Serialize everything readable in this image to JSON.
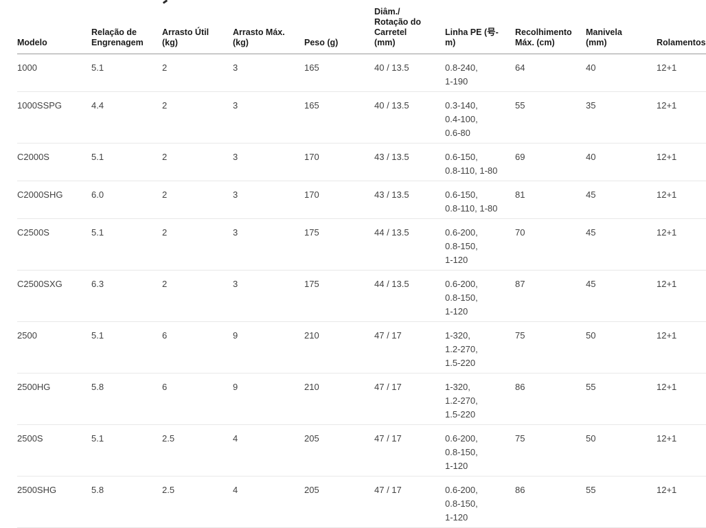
{
  "colors": {
    "background": "#ffffff",
    "header_text": "#1a1a1a",
    "body_text": "#414141",
    "header_border": "#9a9a9a",
    "row_border": "#e8e8e8"
  },
  "table": {
    "fields": [
      "modelo",
      "relacao_engrenagem",
      "arrasto_util",
      "arrasto_max",
      "peso",
      "diam_rotacao_carretel",
      "linha_pe",
      "recolhimento_max",
      "manivela",
      "rolamentos"
    ],
    "headers": {
      "modelo": "Modelo",
      "relacao_engrenagem": "Relação de\nEngrenagem",
      "arrasto_util": "Arrasto Útil\n(kg)",
      "arrasto_max": "Arrasto Máx.\n(kg)",
      "peso": "Peso (g)",
      "diam_rotacao_carretel": "Diâm./\nRotação do\nCarretel\n(mm)",
      "linha_pe": "Linha PE (号-\nm)",
      "recolhimento_max": "Recolhimento\nMáx. (cm)",
      "manivela": "Manivela\n(mm)",
      "rolamentos": "Rolamentos"
    },
    "rows": [
      {
        "modelo": "1000",
        "relacao_engrenagem": "5.1",
        "arrasto_util": "2",
        "arrasto_max": "3",
        "peso": "165",
        "diam_rotacao_carretel": "40 / 13.5",
        "linha_pe": "0.8-240,\n1-190",
        "recolhimento_max": "64",
        "manivela": "40",
        "rolamentos": "12+1"
      },
      {
        "modelo": "1000SSPG",
        "relacao_engrenagem": "4.4",
        "arrasto_util": "2",
        "arrasto_max": "3",
        "peso": "165",
        "diam_rotacao_carretel": "40 / 13.5",
        "linha_pe": "0.3-140,\n0.4-100,\n0.6-80",
        "recolhimento_max": "55",
        "manivela": "35",
        "rolamentos": "12+1"
      },
      {
        "modelo": "C2000S",
        "relacao_engrenagem": "5.1",
        "arrasto_util": "2",
        "arrasto_max": "3",
        "peso": "170",
        "diam_rotacao_carretel": "43 / 13.5",
        "linha_pe": "0.6-150,\n0.8-110, 1-80",
        "recolhimento_max": "69",
        "manivela": "40",
        "rolamentos": "12+1"
      },
      {
        "modelo": "C2000SHG",
        "relacao_engrenagem": "6.0",
        "arrasto_util": "2",
        "arrasto_max": "3",
        "peso": "170",
        "diam_rotacao_carretel": "43 / 13.5",
        "linha_pe": "0.6-150,\n0.8-110, 1-80",
        "recolhimento_max": "81",
        "manivela": "45",
        "rolamentos": "12+1"
      },
      {
        "modelo": "C2500S",
        "relacao_engrenagem": "5.1",
        "arrasto_util": "2",
        "arrasto_max": "3",
        "peso": "175",
        "diam_rotacao_carretel": "44 / 13.5",
        "linha_pe": "0.6-200,\n0.8-150,\n1-120",
        "recolhimento_max": "70",
        "manivela": "45",
        "rolamentos": "12+1"
      },
      {
        "modelo": "C2500SXG",
        "relacao_engrenagem": "6.3",
        "arrasto_util": "2",
        "arrasto_max": "3",
        "peso": "175",
        "diam_rotacao_carretel": "44 / 13.5",
        "linha_pe": "0.6-200,\n0.8-150,\n1-120",
        "recolhimento_max": "87",
        "manivela": "45",
        "rolamentos": "12+1"
      },
      {
        "modelo": "2500",
        "relacao_engrenagem": "5.1",
        "arrasto_util": "6",
        "arrasto_max": "9",
        "peso": "210",
        "diam_rotacao_carretel": "47 / 17",
        "linha_pe": "1-320,\n1.2-270,\n1.5-220",
        "recolhimento_max": "75",
        "manivela": "50",
        "rolamentos": "12+1"
      },
      {
        "modelo": "2500HG",
        "relacao_engrenagem": "5.8",
        "arrasto_util": "6",
        "arrasto_max": "9",
        "peso": "210",
        "diam_rotacao_carretel": "47 / 17",
        "linha_pe": "1-320,\n1.2-270,\n1.5-220",
        "recolhimento_max": "86",
        "manivela": "55",
        "rolamentos": "12+1"
      },
      {
        "modelo": "2500S",
        "relacao_engrenagem": "5.1",
        "arrasto_util": "2.5",
        "arrasto_max": "4",
        "peso": "205",
        "diam_rotacao_carretel": "47 / 17",
        "linha_pe": "0.6-200,\n0.8-150,\n1-120",
        "recolhimento_max": "75",
        "manivela": "50",
        "rolamentos": "12+1"
      },
      {
        "modelo": "2500SHG",
        "relacao_engrenagem": "5.8",
        "arrasto_util": "2.5",
        "arrasto_max": "4",
        "peso": "205",
        "diam_rotacao_carretel": "47 / 17",
        "linha_pe": "0.6-200,\n0.8-150,\n1-120",
        "recolhimento_max": "86",
        "manivela": "55",
        "rolamentos": "12+1"
      }
    ]
  }
}
